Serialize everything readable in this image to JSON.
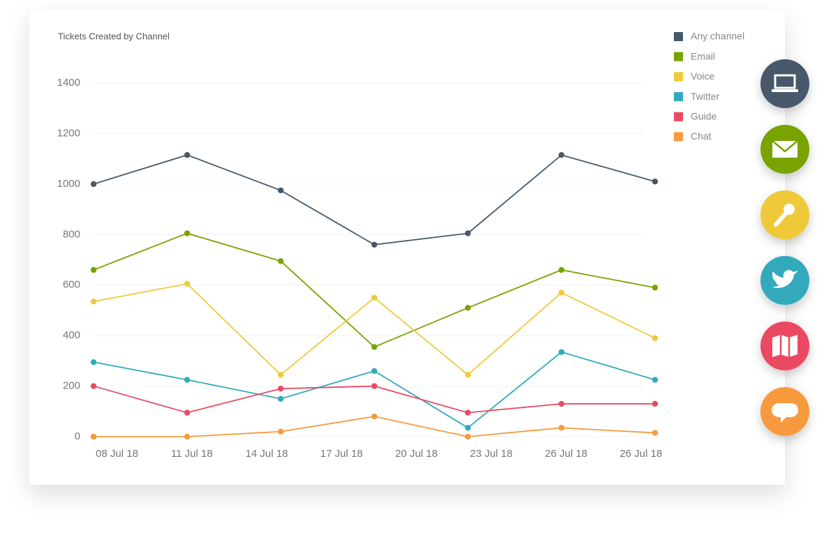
{
  "chart_data": {
    "type": "line",
    "title": "Tickets Created by Channel",
    "x": [
      0,
      1,
      2,
      3,
      4,
      5,
      6
    ],
    "xlim": [
      0,
      6
    ],
    "xticks": [
      {
        "value": 0.25,
        "label": "08 Jul 18"
      },
      {
        "value": 1.05,
        "label": "11 Jul 18"
      },
      {
        "value": 1.85,
        "label": "14 Jul 18"
      },
      {
        "value": 2.65,
        "label": "17 Jul 18"
      },
      {
        "value": 3.45,
        "label": "20 Jul 18"
      },
      {
        "value": 4.25,
        "label": "23 Jul 18"
      },
      {
        "value": 5.05,
        "label": "26 Jul 18"
      },
      {
        "value": 5.85,
        "label": "26 Jul 18"
      }
    ],
    "ylim": [
      0,
      1400
    ],
    "yticks": [
      0,
      200,
      400,
      600,
      800,
      1000,
      1200,
      1400
    ],
    "grid": true,
    "legend": "right",
    "series": [
      {
        "name": "Any channel",
        "color": "#46596a",
        "values": [
          1000,
          1115,
          975,
          760,
          805,
          1115,
          1010
        ]
      },
      {
        "name": "Email",
        "color": "#78a300",
        "values": [
          660,
          805,
          695,
          355,
          510,
          660,
          590
        ]
      },
      {
        "name": "Voice",
        "color": "#f0c93a",
        "values": [
          535,
          605,
          245,
          550,
          245,
          570,
          390
        ]
      },
      {
        "name": "Twitter",
        "color": "#30aabc",
        "values": [
          295,
          225,
          150,
          260,
          35,
          335,
          225
        ]
      },
      {
        "name": "Guide",
        "color": "#eb4962",
        "values": [
          200,
          95,
          190,
          200,
          95,
          130,
          130
        ]
      },
      {
        "name": "Chat",
        "color": "#f79a3e",
        "values": [
          0,
          0,
          20,
          80,
          0,
          35,
          15
        ]
      }
    ]
  }
}
